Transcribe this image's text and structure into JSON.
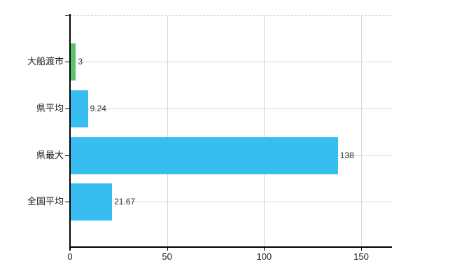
{
  "chart_data": {
    "type": "bar",
    "orientation": "horizontal",
    "title": "",
    "xlabel": "",
    "ylabel": "",
    "categories": [
      "大船渡市",
      "県平均",
      "県最大",
      "全国平均"
    ],
    "values": [
      3,
      9.24,
      138,
      21.67
    ],
    "value_labels": [
      "3",
      "9.24",
      "138",
      "21.67"
    ],
    "bar_colors": [
      "#5dc26d",
      "#38bdf0",
      "#38bdf0",
      "#38bdf0"
    ],
    "x_ticks": [
      0,
      50,
      100,
      150
    ],
    "x_tick_labels": [
      "0",
      "50",
      "100",
      "150"
    ],
    "xlim": [
      0,
      165.5
    ],
    "grid": true,
    "legend": false,
    "plot_border_style": "dashed-top",
    "background_color": "#ffffff",
    "grid_color": "#d6d6d6",
    "axis_color": "#000000"
  }
}
